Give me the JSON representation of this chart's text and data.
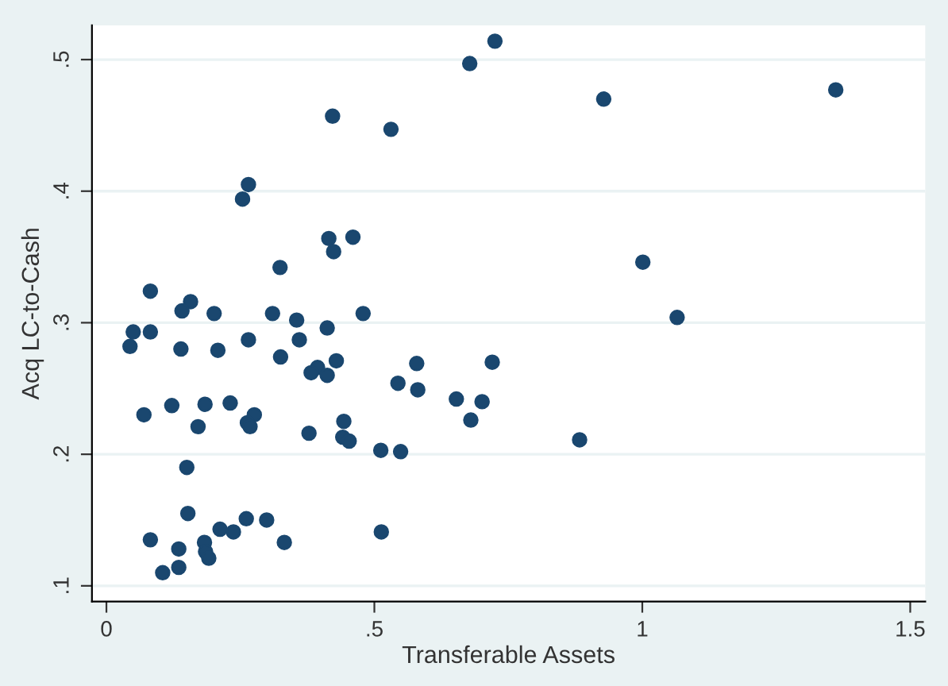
{
  "chart_data": {
    "type": "scatter",
    "xlabel": "Transferable Assets",
    "ylabel": "Acq LC-to-Cash",
    "xlim": [
      -0.027,
      1.528
    ],
    "ylim": [
      0.088,
      0.526
    ],
    "xticks": [
      0,
      {
        "value": 0.5,
        "label": ".5"
      },
      1,
      {
        "value": 1.5,
        "label": "1.5"
      }
    ],
    "yticks": [
      {
        "value": 0.1,
        "label": ".1"
      },
      {
        "value": 0.2,
        "label": ".2"
      },
      {
        "value": 0.3,
        "label": ".3"
      },
      {
        "value": 0.4,
        "label": ".4"
      },
      {
        "value": 0.5,
        "label": ".5"
      }
    ],
    "grid": "y",
    "marker": "circle",
    "series": [
      {
        "color": "#1a476f",
        "x": [
          0.725,
          0.678,
          1.361,
          0.928,
          0.422,
          0.531,
          0.265,
          0.254,
          0.415,
          0.46,
          0.424,
          1.001,
          0.324,
          0.082,
          0.157,
          0.141,
          0.201,
          0.31,
          0.479,
          1.065,
          0.355,
          0.412,
          0.05,
          0.082,
          0.265,
          0.36,
          0.044,
          0.139,
          0.208,
          0.325,
          0.429,
          0.579,
          0.72,
          0.394,
          0.382,
          0.412,
          0.544,
          0.581,
          0.653,
          0.701,
          0.231,
          0.184,
          0.122,
          0.07,
          0.276,
          0.263,
          0.443,
          0.68,
          0.268,
          0.171,
          0.378,
          0.441,
          0.453,
          0.883,
          0.512,
          0.549,
          0.15,
          0.152,
          0.261,
          0.299,
          0.212,
          0.237,
          0.513,
          0.082,
          0.183,
          0.332,
          0.135,
          0.185,
          0.191,
          0.135,
          0.105
        ],
        "values": [
          0.514,
          0.497,
          0.477,
          0.47,
          0.457,
          0.447,
          0.405,
          0.394,
          0.364,
          0.365,
          0.354,
          0.346,
          0.342,
          0.324,
          0.316,
          0.309,
          0.307,
          0.307,
          0.307,
          0.304,
          0.302,
          0.296,
          0.293,
          0.293,
          0.287,
          0.287,
          0.282,
          0.28,
          0.279,
          0.274,
          0.271,
          0.269,
          0.27,
          0.266,
          0.262,
          0.26,
          0.254,
          0.249,
          0.242,
          0.24,
          0.239,
          0.238,
          0.237,
          0.23,
          0.23,
          0.224,
          0.225,
          0.226,
          0.221,
          0.221,
          0.216,
          0.213,
          0.21,
          0.211,
          0.203,
          0.202,
          0.19,
          0.155,
          0.151,
          0.15,
          0.143,
          0.141,
          0.141,
          0.135,
          0.133,
          0.133,
          0.128,
          0.126,
          0.121,
          0.114,
          0.11
        ]
      }
    ]
  }
}
